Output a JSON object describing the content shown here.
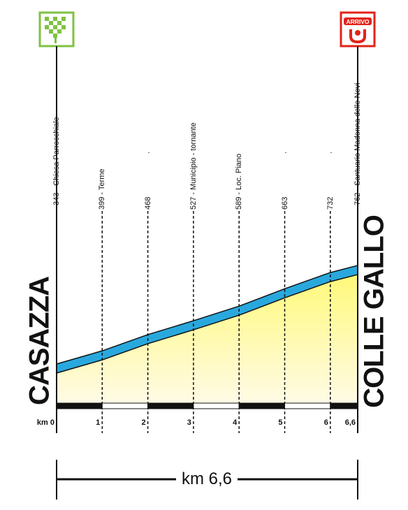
{
  "chart_data": {
    "type": "area",
    "start_name": "CASAZZA",
    "finish_name": "COLLE GALLO",
    "km_prefix": "km",
    "total_distance_label": "km 6,6",
    "x_km": [
      0,
      1,
      2,
      3,
      4,
      5,
      6,
      6.6
    ],
    "elevation_m": [
      343,
      399,
      468,
      527,
      589,
      663,
      732,
      762
    ],
    "waypoints": [
      {
        "km": 0,
        "label": "343 - Chiesa Parrocchiale"
      },
      {
        "km": 1,
        "label": "399 - Terme"
      },
      {
        "km": 2,
        "label": "468"
      },
      {
        "km": 3,
        "label": "527 - Municipio - tornante"
      },
      {
        "km": 4,
        "label": "589 - Loc. Piano"
      },
      {
        "km": 5,
        "label": "663"
      },
      {
        "km": 6,
        "label": "732"
      },
      {
        "km": 6.6,
        "label": "762 - Santuario Madonna delle Nevi"
      }
    ],
    "km_ticks": [
      {
        "km": 0,
        "label": "km 0"
      },
      {
        "km": 1,
        "label": "1"
      },
      {
        "km": 2,
        "label": "2"
      },
      {
        "km": 3,
        "label": "3"
      },
      {
        "km": 4,
        "label": "4"
      },
      {
        "km": 5,
        "label": "5"
      },
      {
        "km": 6,
        "label": "6"
      },
      {
        "km": 6.6,
        "label": "6,6"
      }
    ],
    "start_sign": "checkered-flag-icon",
    "finish_sign": "arrivo-finish-icon",
    "finish_sign_text": "ARRIVO",
    "colors": {
      "profile_band": "#29a8de",
      "fill_top": "#fff97a",
      "fill_bottom": "#fffbe6",
      "km_bar_dark": "#111111",
      "start_sign_green": "#7ec242",
      "finish_sign_red": "#e2231a"
    }
  }
}
